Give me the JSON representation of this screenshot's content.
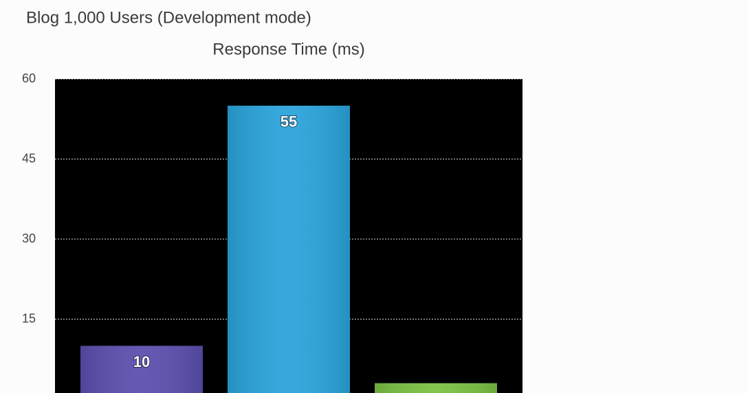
{
  "chart_data": {
    "type": "bar",
    "title": "Blog 1,000 Users (Development mode)",
    "subtitle": "Response Time (ms)",
    "values": [
      10,
      55,
      3
    ],
    "colors": [
      "#5a4fae",
      "#2aa4dc",
      "#7ac143"
    ],
    "ylim": [
      0,
      60
    ],
    "yticks": [
      15,
      30,
      45,
      60
    ],
    "grid": true
  }
}
